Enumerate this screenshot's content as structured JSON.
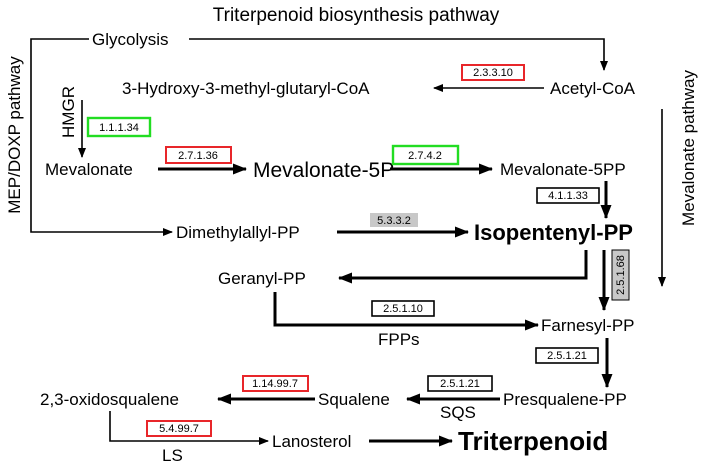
{
  "title": "Triterpenoid biosynthesis pathway",
  "side_labels": {
    "left": "MEP/DOXP pathway",
    "right": "Mevalonate pathway"
  },
  "nodes": {
    "glycolysis": "Glycolysis",
    "acetyl_coa": "Acetyl-CoA",
    "hmg_coa": "3-Hydroxy-3-methyl-glutaryl-CoA",
    "mevalonate": "Mevalonate",
    "mevalonate_5p": "Mevalonate-5P",
    "mevalonate_5pp": "Mevalonate-5PP",
    "dimethylallyl_pp": "Dimethylallyl-PP",
    "isopentenyl_pp": "Isopentenyl-PP",
    "geranyl_pp": "Geranyl-PP",
    "farnesyl_pp": "Farnesyl-PP",
    "presqualene_pp": "Presqualene-PP",
    "squalene": "Squalene",
    "oxidosqualene": "2,3-oxidosqualene",
    "lanosterol": "Lanosterol",
    "triterpenoid": "Triterpenoid"
  },
  "enzyme_labels": {
    "hmgr": "HMGR",
    "fpps": "FPPs",
    "sqs": "SQS",
    "ls": "LS"
  },
  "ec_numbers": {
    "ec_2_3_3_10": "2.3.3.10",
    "ec_1_1_1_34": "1.1.1.34",
    "ec_2_7_1_36": "2.7.1.36",
    "ec_2_7_4_2": "2.7.4.2",
    "ec_4_1_1_33": "4.1.1.33",
    "ec_5_3_3_2": "5.3.3.2",
    "ec_2_5_1_68": "2.5.1.68",
    "ec_2_5_1_10": "2.5.1.10",
    "ec_2_5_1_21_a": "2.5.1.21",
    "ec_2_5_1_21_b": "2.5.1.21",
    "ec_1_14_99_7": "1.14.99.7",
    "ec_5_4_99_7": "5.4.99.7"
  },
  "legend_colors": {
    "red_border": "#e8262a",
    "green_border": "#22dd22",
    "black_border": "#000000",
    "gray_fill": "#c8c8c8"
  }
}
